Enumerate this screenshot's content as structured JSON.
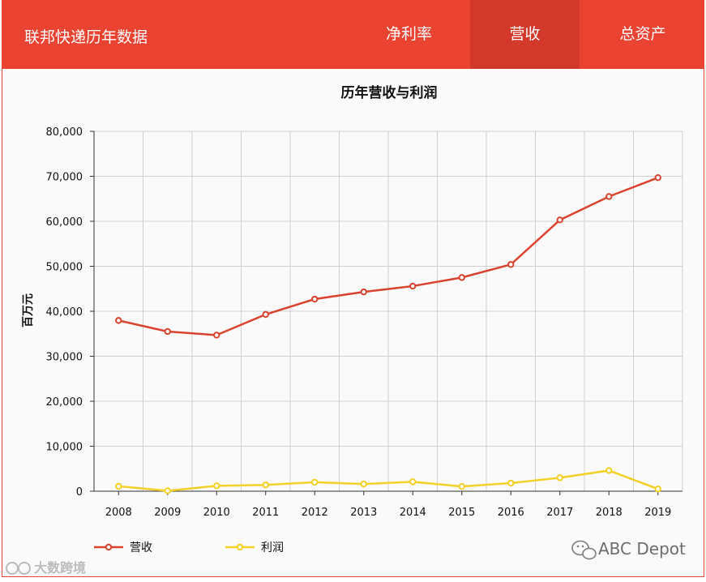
{
  "header": {
    "title": "联邦快递历年数据",
    "tabs": [
      {
        "label": "净利率",
        "active": false
      },
      {
        "label": "营收",
        "active": true
      },
      {
        "label": "总资产",
        "active": false
      }
    ]
  },
  "colors": {
    "header_bg": "#eb4332",
    "tab_active_bg": "#d2392a",
    "series_revenue": "#d9432f",
    "series_profit": "#f2d128"
  },
  "watermarks": {
    "right": "ABC Depot",
    "left": "大数跨境"
  },
  "chart_data": {
    "type": "line",
    "title": "历年营收与利润",
    "xlabel": "",
    "ylabel": "百万元",
    "x": [
      "2008",
      "2009",
      "2010",
      "2011",
      "2012",
      "2013",
      "2014",
      "2015",
      "2016",
      "2017",
      "2018",
      "2019"
    ],
    "ylim": [
      0,
      80000
    ],
    "yticks": [
      0,
      10000,
      20000,
      30000,
      40000,
      50000,
      60000,
      70000,
      80000
    ],
    "ytick_labels": [
      "0",
      "10,000",
      "20,000",
      "30,000",
      "40,000",
      "50,000",
      "60,000",
      "70,000",
      "80,000"
    ],
    "grid": true,
    "legend_position": "bottom-left",
    "series": [
      {
        "name": "营收",
        "values": [
          37950,
          35500,
          34700,
          39300,
          42700,
          44300,
          45600,
          47500,
          50400,
          60300,
          65500,
          69700
        ]
      },
      {
        "name": "利润",
        "values": [
          1100,
          100,
          1200,
          1400,
          2000,
          1600,
          2100,
          1050,
          1800,
          3000,
          4600,
          500
        ]
      }
    ]
  }
}
